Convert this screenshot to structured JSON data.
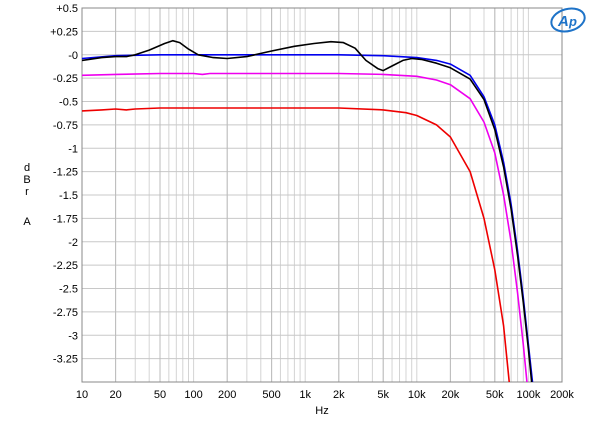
{
  "chart_data": {
    "type": "line",
    "x_scale": "log",
    "xlim": [
      10,
      200000
    ],
    "ylim": [
      -3.5,
      0.5
    ],
    "grid": true,
    "xlabel": "Hz",
    "ylabel": "dBrA",
    "ylabel_chars": [
      "d",
      "B",
      "r",
      "A"
    ],
    "x_ticks": [
      {
        "value": 10,
        "label": "10"
      },
      {
        "value": 20,
        "label": "20"
      },
      {
        "value": 50,
        "label": "50"
      },
      {
        "value": 100,
        "label": "100"
      },
      {
        "value": 200,
        "label": "200"
      },
      {
        "value": 500,
        "label": "500"
      },
      {
        "value": 1000,
        "label": "1k"
      },
      {
        "value": 2000,
        "label": "2k"
      },
      {
        "value": 5000,
        "label": "5k"
      },
      {
        "value": 10000,
        "label": "10k"
      },
      {
        "value": 20000,
        "label": "20k"
      },
      {
        "value": 50000,
        "label": "50k"
      },
      {
        "value": 100000,
        "label": "100k"
      },
      {
        "value": 200000,
        "label": "200k"
      }
    ],
    "y_ticks": [
      {
        "value": 0.5,
        "label": "+0.5"
      },
      {
        "value": 0.25,
        "label": "+0.25"
      },
      {
        "value": 0,
        "label": "-0"
      },
      {
        "value": -0.25,
        "label": "-0.25"
      },
      {
        "value": -0.5,
        "label": "-0.5"
      },
      {
        "value": -0.75,
        "label": "-0.75"
      },
      {
        "value": -1,
        "label": "-1"
      },
      {
        "value": -1.25,
        "label": "-1.25"
      },
      {
        "value": -1.5,
        "label": "-1.5"
      },
      {
        "value": -1.75,
        "label": "-1.75"
      },
      {
        "value": -2,
        "label": "-2"
      },
      {
        "value": -2.25,
        "label": "-2.25"
      },
      {
        "value": -2.5,
        "label": "-2.5"
      },
      {
        "value": -2.75,
        "label": "-2.75"
      },
      {
        "value": -3,
        "label": "-3"
      },
      {
        "value": -3.25,
        "label": "-3.25"
      }
    ],
    "series": [
      {
        "color": "#0000ee",
        "points": [
          [
            10,
            -0.04
          ],
          [
            20,
            -0.01
          ],
          [
            50,
            0.0
          ],
          [
            100,
            0.0
          ],
          [
            500,
            0.0
          ],
          [
            1000,
            0.0
          ],
          [
            2000,
            0.0
          ],
          [
            5000,
            -0.01
          ],
          [
            10000,
            -0.03
          ],
          [
            15000,
            -0.06
          ],
          [
            20000,
            -0.1
          ],
          [
            30000,
            -0.22
          ],
          [
            40000,
            -0.45
          ],
          [
            50000,
            -0.75
          ],
          [
            60000,
            -1.15
          ],
          [
            70000,
            -1.6
          ],
          [
            80000,
            -2.1
          ],
          [
            90000,
            -2.6
          ],
          [
            100000,
            -3.1
          ],
          [
            110000,
            -3.55
          ]
        ]
      },
      {
        "color": "#000000",
        "points": [
          [
            10,
            -0.06
          ],
          [
            15,
            -0.03
          ],
          [
            20,
            -0.02
          ],
          [
            25,
            -0.02
          ],
          [
            30,
            0.0
          ],
          [
            40,
            0.05
          ],
          [
            55,
            0.12
          ],
          [
            65,
            0.15
          ],
          [
            75,
            0.13
          ],
          [
            90,
            0.06
          ],
          [
            110,
            0.0
          ],
          [
            150,
            -0.03
          ],
          [
            200,
            -0.04
          ],
          [
            300,
            -0.02
          ],
          [
            500,
            0.04
          ],
          [
            800,
            0.09
          ],
          [
            1200,
            0.12
          ],
          [
            1700,
            0.14
          ],
          [
            2200,
            0.13
          ],
          [
            2800,
            0.07
          ],
          [
            3500,
            -0.06
          ],
          [
            4500,
            -0.15
          ],
          [
            5000,
            -0.17
          ],
          [
            6000,
            -0.12
          ],
          [
            7500,
            -0.06
          ],
          [
            9000,
            -0.04
          ],
          [
            11000,
            -0.05
          ],
          [
            15000,
            -0.09
          ],
          [
            20000,
            -0.14
          ],
          [
            30000,
            -0.26
          ],
          [
            40000,
            -0.48
          ],
          [
            50000,
            -0.8
          ],
          [
            60000,
            -1.2
          ],
          [
            70000,
            -1.65
          ],
          [
            80000,
            -2.15
          ],
          [
            90000,
            -2.65
          ],
          [
            100000,
            -3.15
          ],
          [
            108000,
            -3.55
          ]
        ]
      },
      {
        "color": "#ee00ee",
        "points": [
          [
            10,
            -0.22
          ],
          [
            20,
            -0.21
          ],
          [
            50,
            -0.2
          ],
          [
            100,
            -0.2
          ],
          [
            120,
            -0.21
          ],
          [
            140,
            -0.2
          ],
          [
            500,
            -0.2
          ],
          [
            1000,
            -0.2
          ],
          [
            2000,
            -0.2
          ],
          [
            5000,
            -0.21
          ],
          [
            10000,
            -0.23
          ],
          [
            15000,
            -0.27
          ],
          [
            20000,
            -0.32
          ],
          [
            30000,
            -0.47
          ],
          [
            40000,
            -0.72
          ],
          [
            50000,
            -1.05
          ],
          [
            60000,
            -1.5
          ],
          [
            70000,
            -2.0
          ],
          [
            80000,
            -2.55
          ],
          [
            90000,
            -3.1
          ],
          [
            98000,
            -3.55
          ]
        ]
      },
      {
        "color": "#ee0000",
        "points": [
          [
            10,
            -0.6
          ],
          [
            15,
            -0.59
          ],
          [
            20,
            -0.58
          ],
          [
            25,
            -0.59
          ],
          [
            30,
            -0.58
          ],
          [
            50,
            -0.57
          ],
          [
            100,
            -0.57
          ],
          [
            500,
            -0.57
          ],
          [
            1000,
            -0.57
          ],
          [
            2000,
            -0.57
          ],
          [
            5000,
            -0.59
          ],
          [
            8000,
            -0.62
          ],
          [
            10000,
            -0.65
          ],
          [
            15000,
            -0.75
          ],
          [
            20000,
            -0.88
          ],
          [
            30000,
            -1.25
          ],
          [
            40000,
            -1.75
          ],
          [
            50000,
            -2.3
          ],
          [
            60000,
            -2.9
          ],
          [
            68000,
            -3.55
          ]
        ]
      }
    ]
  },
  "logo": {
    "text": "AP"
  }
}
